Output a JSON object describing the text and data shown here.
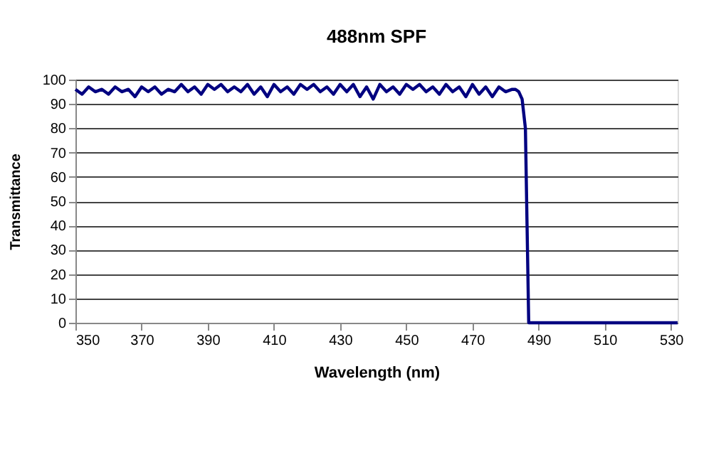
{
  "chart_data": {
    "type": "line",
    "title": "488nm SPF",
    "xlabel": "Wavelength (nm)",
    "ylabel": "Transmittance",
    "x": [
      350,
      352,
      354,
      356,
      358,
      360,
      362,
      364,
      366,
      368,
      370,
      372,
      374,
      376,
      378,
      380,
      382,
      384,
      386,
      388,
      390,
      392,
      394,
      396,
      398,
      400,
      402,
      404,
      406,
      408,
      410,
      412,
      414,
      416,
      418,
      420,
      422,
      424,
      426,
      428,
      430,
      432,
      434,
      436,
      438,
      440,
      442,
      444,
      446,
      448,
      450,
      452,
      454,
      456,
      458,
      460,
      462,
      464,
      466,
      468,
      470,
      472,
      474,
      476,
      478,
      480,
      482,
      483,
      484,
      485,
      486,
      486.5,
      487,
      490,
      532
    ],
    "series": [
      {
        "color": "#000080",
        "values": [
          96,
          94,
          97,
          95,
          96,
          94,
          97,
          95,
          96,
          93,
          97,
          95,
          97,
          94,
          96,
          95,
          98,
          95,
          97,
          94,
          98,
          96,
          98,
          95,
          97,
          95,
          98,
          94,
          97,
          93,
          98,
          95,
          97,
          94,
          98,
          96,
          98,
          95,
          97,
          94,
          98,
          95,
          98,
          93,
          97,
          92,
          98,
          95,
          97,
          94,
          98,
          96,
          98,
          95,
          97,
          94,
          98,
          95,
          97,
          93,
          98,
          94,
          97,
          93,
          97,
          95,
          96,
          96,
          95,
          92,
          80,
          40,
          0,
          0,
          0
        ]
      }
    ],
    "xlim": [
      350,
      532
    ],
    "xticks": [
      350,
      370,
      390,
      410,
      430,
      450,
      470,
      490,
      510,
      530
    ],
    "ylim": [
      0,
      100
    ],
    "yticks": [
      0,
      10,
      20,
      30,
      40,
      50,
      60,
      70,
      80,
      90,
      100
    ],
    "grid": "y",
    "marker": "none",
    "line_style": "solid"
  }
}
